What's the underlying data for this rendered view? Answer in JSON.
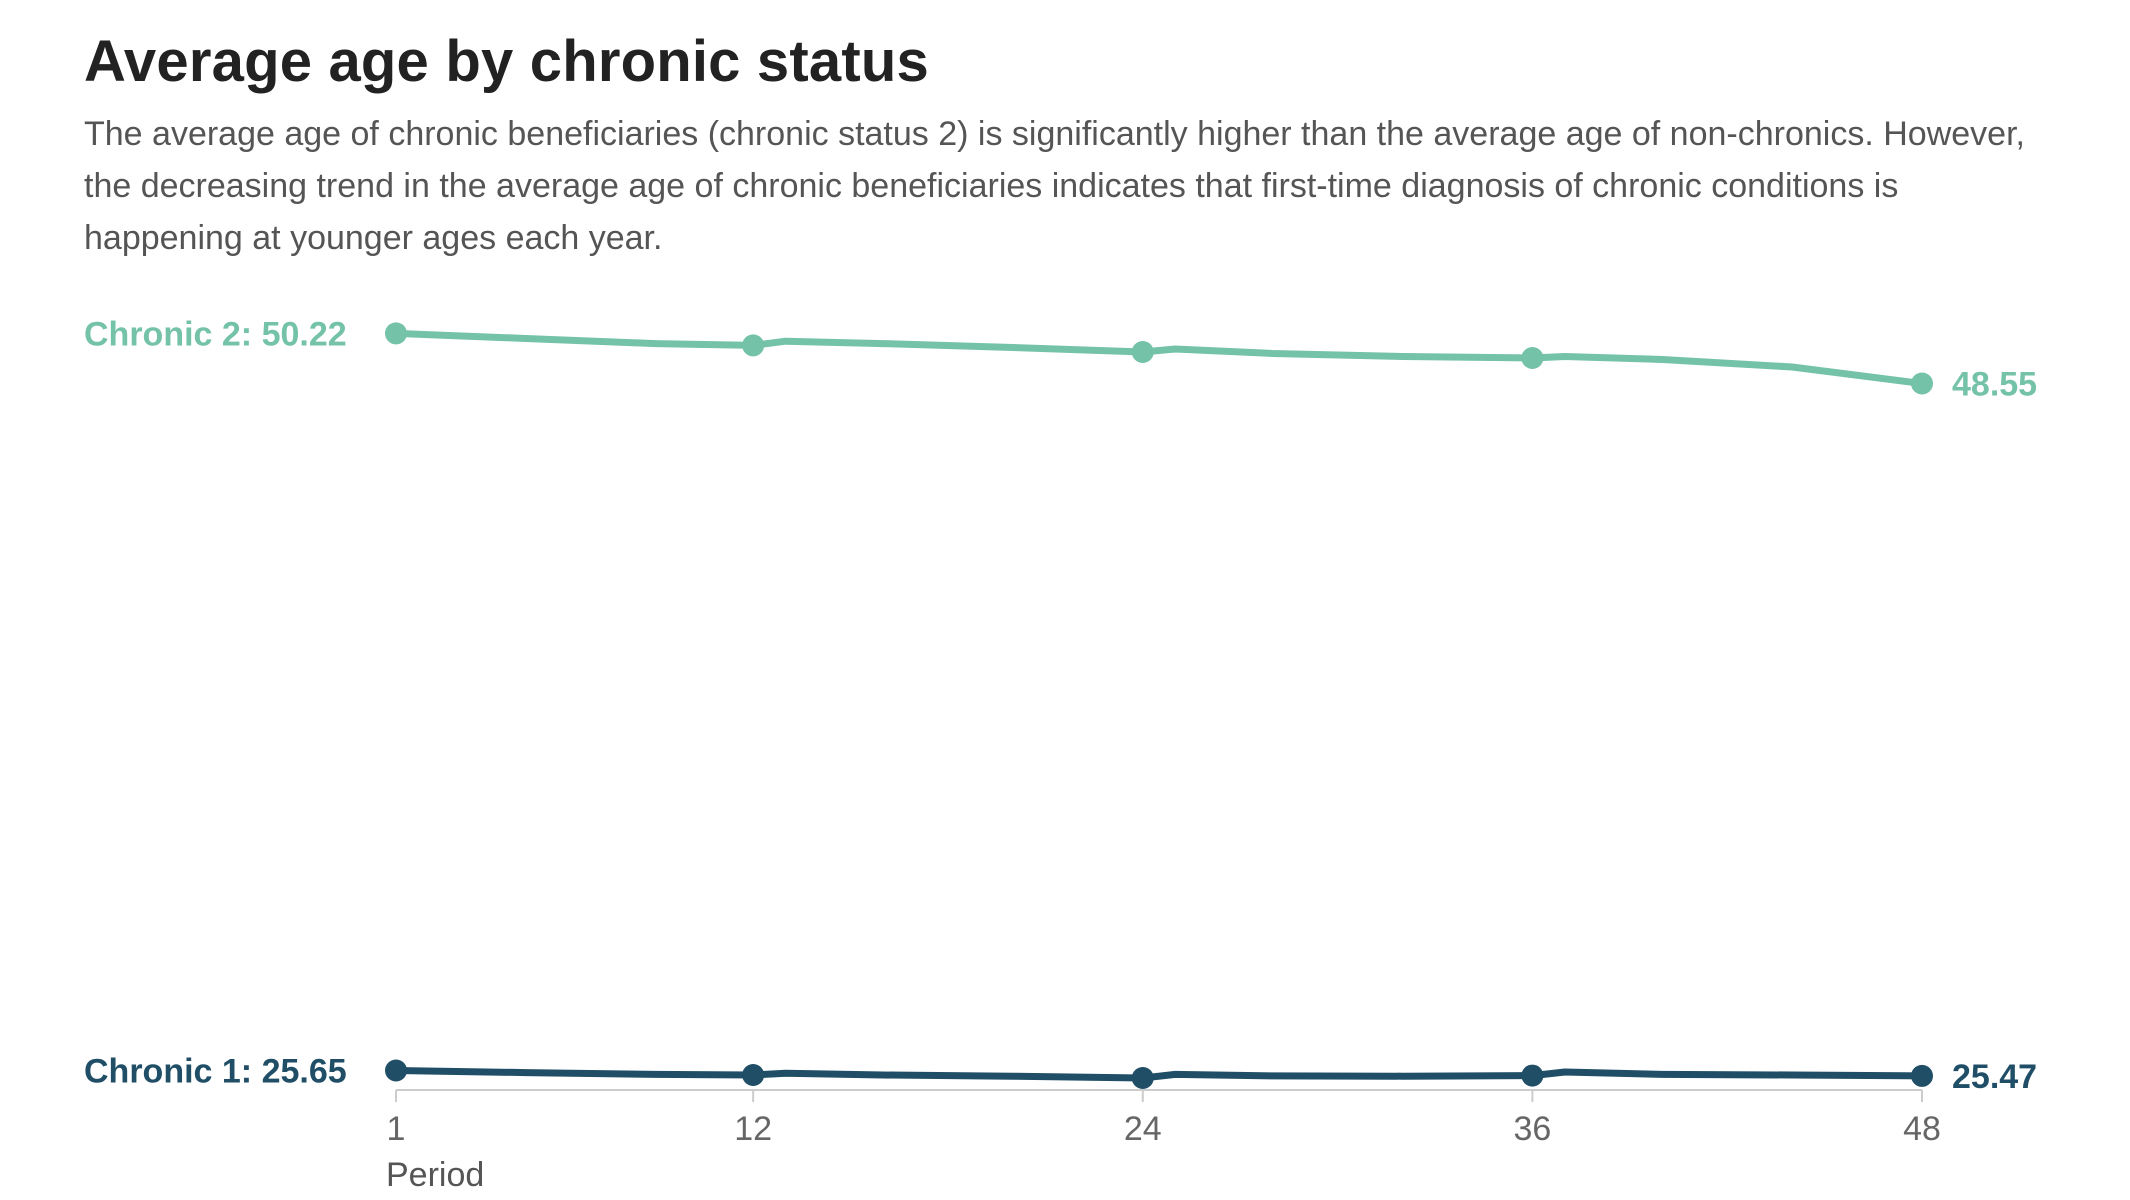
{
  "title": "Average age by chronic status",
  "subtitle": "The average age of chronic beneficiaries (chronic status 2) is significantly higher than the average age of non-chronics. However, the decreasing trend in the average age of chronic beneficiaries indicates that first-time diagnosis of chronic conditions is happening at younger ages each year.",
  "colors": {
    "chronic2": "#74c2a8",
    "chronic1": "#1f4e66",
    "axis": "#cccccc"
  },
  "chart_data": {
    "type": "line",
    "xlabel": "Period",
    "xticks": [
      1,
      12,
      24,
      36,
      48
    ],
    "ylim": [
      22,
      52
    ],
    "grid": false,
    "legend": "inline labels at line ends",
    "series": [
      {
        "key": "chronic2",
        "name": "Chronic 2",
        "start_label": "Chronic 2: 50.22",
        "end_label": "48.55",
        "markers_at": [
          1,
          12,
          24,
          36,
          48
        ],
        "x": [
          1,
          5,
          9,
          12,
          13,
          16,
          20,
          24,
          25,
          28,
          32,
          36,
          37,
          40,
          44,
          48
        ],
        "values": [
          50.22,
          50.05,
          49.88,
          49.82,
          49.96,
          49.88,
          49.75,
          49.6,
          49.7,
          49.55,
          49.45,
          49.4,
          49.45,
          49.35,
          49.1,
          48.55
        ]
      },
      {
        "key": "chronic1",
        "name": "Chronic 1",
        "start_label": "Chronic 1: 25.65",
        "end_label": "25.47",
        "markers_at": [
          1,
          12,
          24,
          36,
          48
        ],
        "x": [
          1,
          5,
          9,
          12,
          13,
          16,
          20,
          24,
          25,
          28,
          32,
          36,
          37,
          40,
          44,
          48
        ],
        "values": [
          25.65,
          25.58,
          25.52,
          25.5,
          25.56,
          25.5,
          25.46,
          25.4,
          25.52,
          25.47,
          25.46,
          25.48,
          25.6,
          25.52,
          25.5,
          25.47
        ]
      }
    ]
  }
}
